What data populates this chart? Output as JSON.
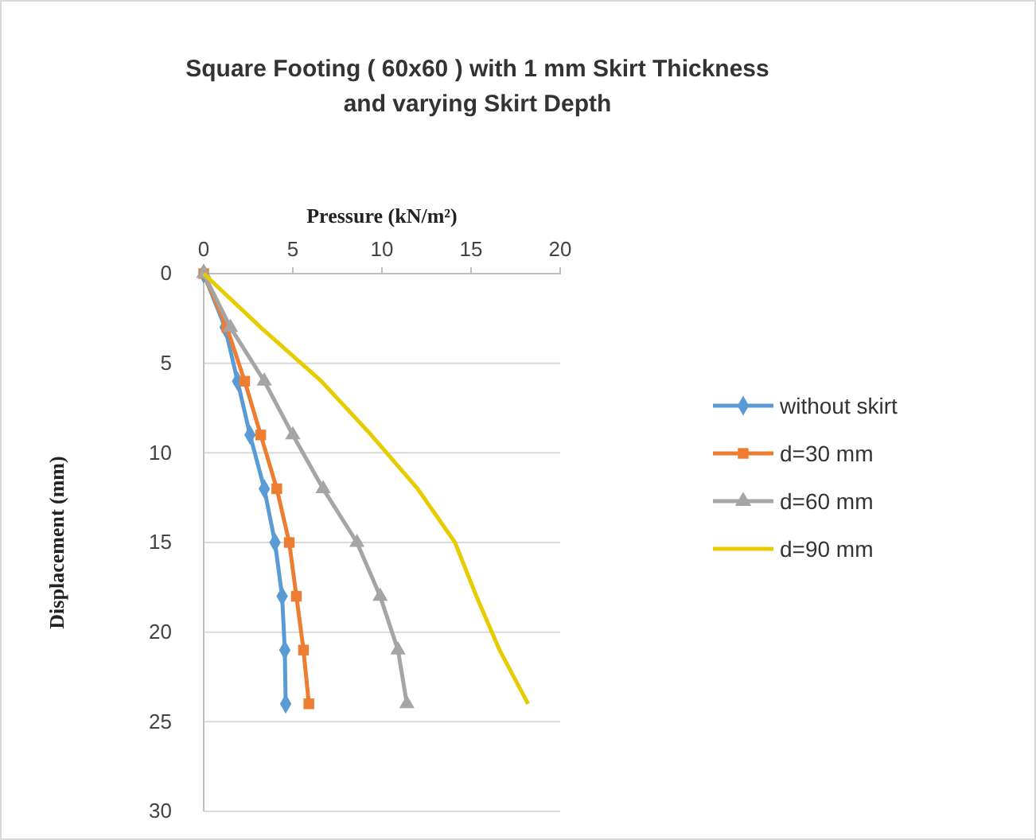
{
  "chart_data": {
    "type": "line",
    "title": "Square Footing ( 60x60 ) with 1 mm Skirt Thickness\nand  varying Skirt Depth",
    "xlabel": "Pressure  (kN/m²)",
    "ylabel": "Displacement (mm)",
    "xlim": [
      0,
      20
    ],
    "xticks": [
      0,
      5,
      10,
      15,
      20
    ],
    "ylim": [
      30,
      0
    ],
    "yticks": [
      0,
      5,
      10,
      15,
      20,
      25,
      30
    ],
    "grid": "y",
    "legend": "right",
    "line_style": "solid",
    "series": [
      {
        "name": "without skirt",
        "color": "#5b9bd5",
        "marker": "diamond",
        "x": [
          0,
          1.2,
          1.9,
          2.6,
          3.4,
          4.0,
          4.4,
          4.55,
          4.6
        ],
        "values": [
          0,
          3,
          6,
          9,
          12,
          15,
          18,
          21,
          24
        ]
      },
      {
        "name": "d=30 mm",
        "color": "#ed7d31",
        "marker": "square",
        "x": [
          0,
          1.3,
          2.3,
          3.2,
          4.1,
          4.8,
          5.2,
          5.6,
          5.9
        ],
        "values": [
          0,
          3,
          6,
          9,
          12,
          15,
          18,
          21,
          24
        ]
      },
      {
        "name": "d=60 mm",
        "color": "#a5a5a5",
        "marker": "triangle",
        "x": [
          0,
          1.5,
          3.4,
          5.0,
          6.7,
          8.6,
          9.9,
          10.9,
          11.4
        ],
        "values": [
          0,
          3,
          6,
          9,
          12,
          15,
          18,
          21,
          24
        ]
      },
      {
        "name": "d=90 mm",
        "color": "#e6cc00",
        "marker": "none",
        "x": [
          0,
          3.2,
          6.6,
          9.4,
          12.0,
          14.1,
          15.3,
          16.6,
          18.2
        ],
        "values": [
          0,
          3,
          6,
          9,
          12,
          15,
          18,
          21,
          24
        ]
      }
    ]
  }
}
